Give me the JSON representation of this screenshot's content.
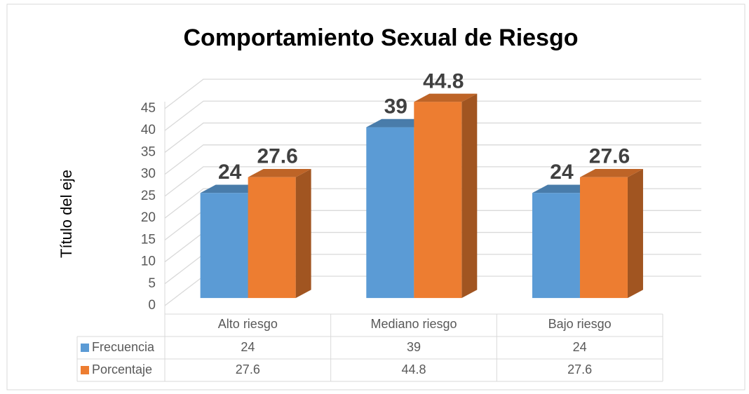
{
  "chart_data": {
    "type": "bar3d",
    "title": "Comportamiento Sexual de Riesgo",
    "y_label": "Título del eje",
    "categories": [
      "Alto riesgo",
      "Mediano riesgo",
      "Bajo riesgo"
    ],
    "series": [
      {
        "name": "Frecuencia",
        "color": "#5b9bd5",
        "values": [
          24,
          39,
          24
        ]
      },
      {
        "name": "Porcentaje",
        "color": "#ed7d31",
        "values": [
          27.6,
          44.8,
          27.6
        ]
      }
    ],
    "ylim": [
      0,
      45
    ],
    "yticks": [
      0,
      5,
      10,
      15,
      20,
      25,
      30,
      35,
      40,
      45
    ],
    "grid": true
  }
}
